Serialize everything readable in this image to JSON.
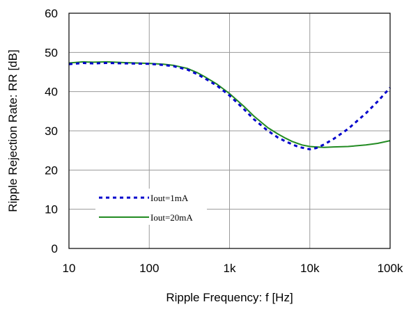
{
  "chart_data": {
    "type": "line",
    "xlabel": "Ripple Frequency: f [Hz]",
    "ylabel": "Ripple Rejection Rate: RR [dB]",
    "x_scale": "log",
    "xlim": [
      10,
      100000
    ],
    "ylim": [
      0,
      60
    ],
    "grid": true,
    "legend_position": "lower-left",
    "x_ticks": [
      {
        "value": 10,
        "label": "10"
      },
      {
        "value": 100,
        "label": "100"
      },
      {
        "value": 1000,
        "label": "1k"
      },
      {
        "value": 10000,
        "label": "10k"
      },
      {
        "value": 100000,
        "label": "100k"
      }
    ],
    "y_ticks": [
      {
        "value": 0,
        "label": "0"
      },
      {
        "value": 10,
        "label": "10"
      },
      {
        "value": 20,
        "label": "20"
      },
      {
        "value": 30,
        "label": "30"
      },
      {
        "value": 40,
        "label": "40"
      },
      {
        "value": 50,
        "label": "50"
      },
      {
        "value": 60,
        "label": "60"
      }
    ],
    "series": [
      {
        "name": "Iout=1mA",
        "color": "#0000cc",
        "style": "dotted",
        "x": [
          10,
          15,
          20,
          30,
          50,
          100,
          150,
          200,
          300,
          400,
          500,
          700,
          1000,
          1500,
          2000,
          3000,
          4000,
          5000,
          6000,
          7000,
          8000,
          10000,
          12000,
          15000,
          20000,
          30000,
          50000,
          70000,
          100000
        ],
        "y": [
          47,
          47.3,
          47.2,
          47.3,
          47.2,
          47.1,
          46.8,
          46.5,
          45.6,
          44.4,
          43.3,
          41.5,
          39,
          35.6,
          33,
          30,
          28.3,
          27.3,
          26.6,
          26,
          25.7,
          25.3,
          25.6,
          26.5,
          28,
          30.5,
          34.5,
          37.5,
          41
        ]
      },
      {
        "name": "Iout=20mA",
        "color": "#228B22",
        "style": "solid",
        "x": [
          10,
          15,
          20,
          30,
          50,
          100,
          150,
          200,
          300,
          400,
          500,
          700,
          1000,
          1500,
          2000,
          3000,
          4000,
          5000,
          6000,
          7000,
          8000,
          10000,
          12000,
          15000,
          20000,
          30000,
          50000,
          70000,
          100000
        ],
        "y": [
          47.3,
          47.6,
          47.5,
          47.6,
          47.4,
          47.2,
          47,
          46.7,
          45.9,
          44.8,
          43.7,
          41.9,
          39.5,
          36.3,
          33.8,
          30.8,
          29.2,
          28.1,
          27.3,
          26.8,
          26.4,
          26,
          25.9,
          25.8,
          25.9,
          26,
          26.4,
          26.8,
          27.5
        ]
      }
    ]
  }
}
